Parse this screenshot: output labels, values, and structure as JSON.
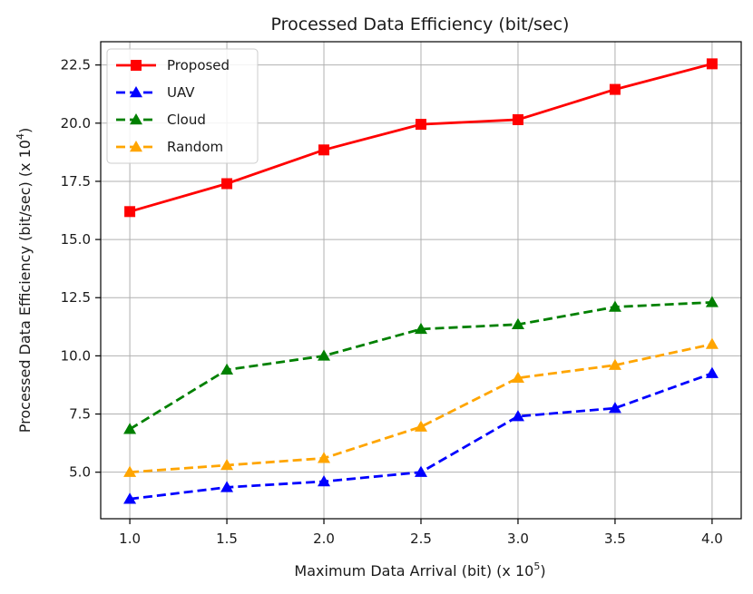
{
  "chart_data": {
    "type": "line",
    "title": "Processed Data Efficiency (bit/sec)",
    "xlabel": "Maximum Data Arrival (bit) (x 10",
    "xlabel_exponent": "5",
    "xlabel_suffix": ")",
    "ylabel": "Processed Data Efficiency (bit/sec) (x 10",
    "ylabel_exponent": "4",
    "ylabel_suffix": ")",
    "x": [
      1.0,
      1.5,
      2.0,
      2.5,
      3.0,
      3.5,
      4.0
    ],
    "x_tick_labels": [
      "1.0",
      "1.5",
      "2.0",
      "2.5",
      "3.0",
      "3.5",
      "4.0"
    ],
    "y_ticks": [
      5.0,
      7.5,
      10.0,
      12.5,
      15.0,
      17.5,
      20.0,
      22.5
    ],
    "y_tick_labels": [
      "5.0",
      "7.5",
      "10.0",
      "12.5",
      "15.0",
      "17.5",
      "20.0",
      "22.5"
    ],
    "xlim": [
      0.85,
      4.15
    ],
    "ylim": [
      3.0,
      23.5
    ],
    "grid": true,
    "legend_position": "top-left",
    "series": [
      {
        "name": "Proposed",
        "color": "#ff0000",
        "marker": "square",
        "dash": "solid",
        "values": [
          16.2,
          17.4,
          18.85,
          19.95,
          20.15,
          21.45,
          22.55
        ]
      },
      {
        "name": "UAV",
        "color": "#0000ff",
        "marker": "triangle",
        "dash": "dashed",
        "values": [
          3.85,
          4.35,
          4.6,
          5.0,
          7.4,
          7.75,
          9.25
        ]
      },
      {
        "name": "Cloud",
        "color": "#008000",
        "marker": "triangle",
        "dash": "dashed",
        "values": [
          6.85,
          9.4,
          10.0,
          11.15,
          11.35,
          12.1,
          12.3
        ]
      },
      {
        "name": "Random",
        "color": "#ffa500",
        "marker": "triangle",
        "dash": "dashed",
        "values": [
          5.0,
          5.3,
          5.6,
          6.95,
          9.05,
          9.6,
          10.5
        ]
      }
    ]
  }
}
